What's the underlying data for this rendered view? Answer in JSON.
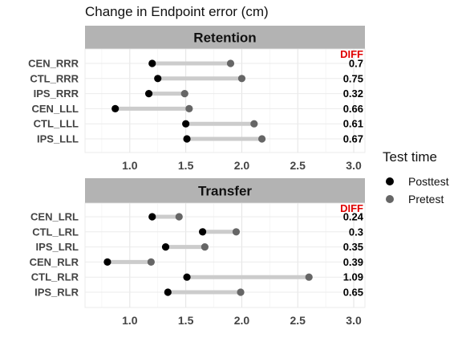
{
  "chart_data": {
    "type": "scatter",
    "title": "Change in Endpoint error (cm)",
    "xlim": [
      0.6,
      3.1
    ],
    "xticks": [
      1.0,
      1.5,
      2.0,
      2.5,
      3.0
    ],
    "xtick_labels": [
      "1.0",
      "1.5",
      "2.0",
      "2.5",
      "3.0"
    ],
    "grid": true,
    "legend_position": "right",
    "legend": {
      "title": "Test time",
      "entries": [
        {
          "name": "Posttest",
          "color": "#000000"
        },
        {
          "name": "Pretest",
          "color": "#666666"
        }
      ]
    },
    "diff_header": "DIFF",
    "colors": {
      "posttest": "#000000",
      "pretest": "#666666",
      "segment": "#cccccc",
      "strip": "#b3b3b3",
      "diff_header": "#e00000"
    },
    "panels": [
      {
        "title": "Retention",
        "rows": [
          {
            "label": "CEN_RRR",
            "posttest": 1.2,
            "pretest": 1.9,
            "diff": "0.7"
          },
          {
            "label": "CTL_RRR",
            "posttest": 1.25,
            "pretest": 2.0,
            "diff": "0.75"
          },
          {
            "label": "IPS_RRR",
            "posttest": 1.17,
            "pretest": 1.49,
            "diff": "0.32"
          },
          {
            "label": "CEN_LLL",
            "posttest": 0.87,
            "pretest": 1.53,
            "diff": "0.66"
          },
          {
            "label": "CTL_LLL",
            "posttest": 1.5,
            "pretest": 2.11,
            "diff": "0.61"
          },
          {
            "label": "IPS_LLL",
            "posttest": 1.51,
            "pretest": 2.18,
            "diff": "0.67"
          }
        ]
      },
      {
        "title": "Transfer",
        "rows": [
          {
            "label": "CEN_LRL",
            "posttest": 1.2,
            "pretest": 1.44,
            "diff": "0.24"
          },
          {
            "label": "CTL_LRL",
            "posttest": 1.65,
            "pretest": 1.95,
            "diff": "0.3"
          },
          {
            "label": "IPS_LRL",
            "posttest": 1.32,
            "pretest": 1.67,
            "diff": "0.35"
          },
          {
            "label": "CEN_RLR",
            "posttest": 0.8,
            "pretest": 1.19,
            "diff": "0.39"
          },
          {
            "label": "CTL_RLR",
            "posttest": 1.51,
            "pretest": 2.6,
            "diff": "1.09"
          },
          {
            "label": "IPS_RLR",
            "posttest": 1.34,
            "pretest": 1.99,
            "diff": "0.65"
          }
        ]
      }
    ]
  }
}
